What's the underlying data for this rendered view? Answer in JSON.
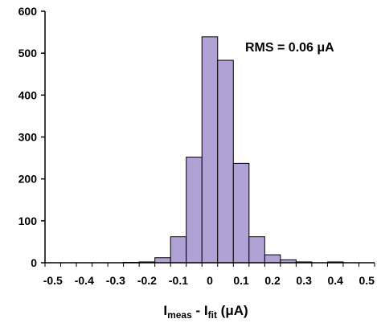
{
  "chart_data": {
    "type": "bar",
    "title": "",
    "annotation": "RMS = 0.06 μA",
    "xlabel": {
      "main1": "I",
      "sub1": "meas",
      "middle": " - I",
      "sub2": "fit",
      "unit": " (μA)"
    },
    "ylabel": "",
    "xlim": [
      -0.525,
      0.525
    ],
    "ylim": [
      0,
      600
    ],
    "bin_width": 0.05,
    "x_ticks": [
      -0.5,
      -0.4,
      -0.3,
      -0.2,
      -0.1,
      0,
      0.1,
      0.2,
      0.3,
      0.4,
      0.5
    ],
    "x_tick_labels": [
      "-0.5",
      "-0.4",
      "-0.3",
      "-0.2",
      "-0.1",
      "0",
      "0.1",
      "0.2",
      "0.3",
      "0.4",
      "0.5"
    ],
    "y_ticks": [
      0,
      100,
      200,
      300,
      400,
      500,
      600
    ],
    "y_tick_labels": [
      "0",
      "100",
      "200",
      "300",
      "400",
      "500",
      "600"
    ],
    "bins": [
      {
        "x": -0.25,
        "value": 1
      },
      {
        "x": -0.2,
        "value": 2
      },
      {
        "x": -0.15,
        "value": 12
      },
      {
        "x": -0.1,
        "value": 62
      },
      {
        "x": -0.05,
        "value": 252
      },
      {
        "x": 0.0,
        "value": 539
      },
      {
        "x": 0.05,
        "value": 483
      },
      {
        "x": 0.1,
        "value": 237
      },
      {
        "x": 0.15,
        "value": 62
      },
      {
        "x": 0.2,
        "value": 19
      },
      {
        "x": 0.25,
        "value": 7
      },
      {
        "x": 0.3,
        "value": 2
      },
      {
        "x": 0.4,
        "value": 2
      }
    ],
    "grid": false,
    "colors": {
      "bar_fill": "#B1A2D5",
      "bar_stroke": "#000000",
      "axis": "#000000"
    }
  }
}
